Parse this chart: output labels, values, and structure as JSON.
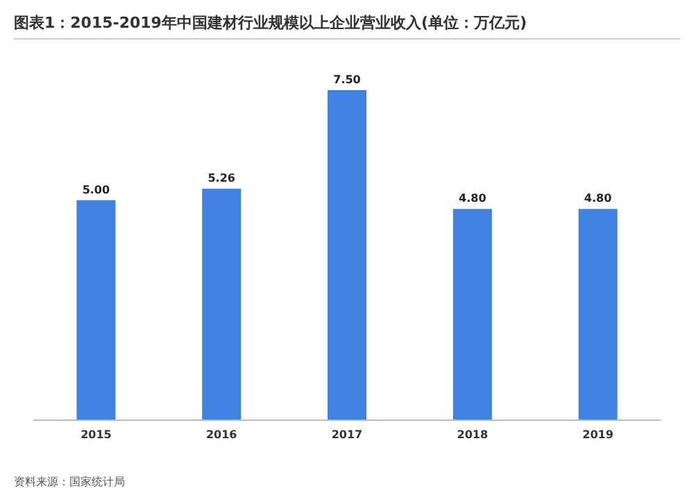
{
  "chart_data": {
    "type": "bar",
    "title": "图表1：2015-2019年中国建材行业规模以上企业营业收入(单位：万亿元)",
    "categories": [
      "2015",
      "2016",
      "2017",
      "2018",
      "2019"
    ],
    "values": [
      5.0,
      5.26,
      7.5,
      4.8,
      4.8
    ],
    "value_labels": [
      "5.00",
      "5.26",
      "7.50",
      "4.80",
      "4.80"
    ],
    "color": "#3f82e0",
    "annotations": [
      "资料来源：国家统计局"
    ]
  }
}
